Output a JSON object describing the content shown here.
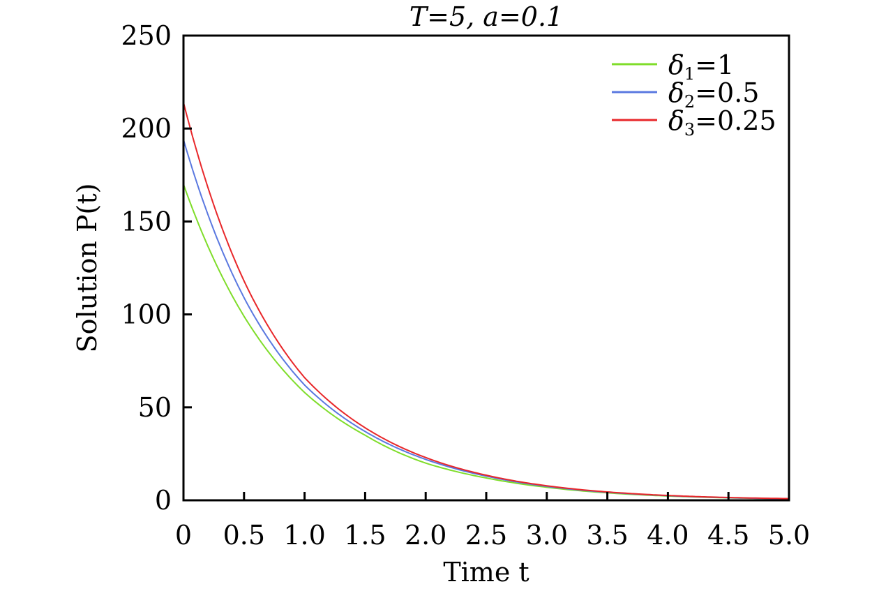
{
  "chart_data": {
    "type": "line",
    "title": "T=5, a=0.1",
    "xlabel": "Time t",
    "ylabel": "Solution P(t)",
    "xlim": [
      0,
      5
    ],
    "ylim": [
      0,
      250
    ],
    "xticks": [
      "0",
      "0.5",
      "1.0",
      "1.5",
      "2.0",
      "2.5",
      "3.0",
      "3.5",
      "4.0",
      "4.5",
      "5.0"
    ],
    "yticks": [
      "0",
      "50",
      "100",
      "150",
      "200",
      "250"
    ],
    "grid": false,
    "legend_position": "upper right",
    "x": [
      0,
      0.5,
      1.0,
      1.5,
      2.0,
      2.5,
      3.0,
      3.5,
      4.0,
      4.5,
      5.0
    ],
    "series": [
      {
        "name": "δ1=1",
        "label_base": "δ",
        "label_sub": "1",
        "label_val": "=1",
        "color": "#7fdd2a",
        "values": [
          170,
          99,
          58,
          35,
          20,
          12,
          7,
          4,
          2.3,
          1.3,
          0.8
        ]
      },
      {
        "name": "δ2=0.5",
        "label_base": "δ",
        "label_sub": "2",
        "label_val": "=0.5",
        "color": "#5a78e0",
        "values": [
          194,
          109,
          62,
          37,
          22,
          13,
          7.5,
          4.3,
          2.5,
          1.4,
          0.8
        ]
      },
      {
        "name": "δ3=0.25",
        "label_base": "δ",
        "label_sub": "3",
        "label_val": "=0.25",
        "color": "#e8272a",
        "values": [
          214,
          118,
          66,
          39,
          23,
          13.5,
          7.8,
          4.5,
          2.6,
          1.5,
          0.9
        ]
      }
    ]
  }
}
